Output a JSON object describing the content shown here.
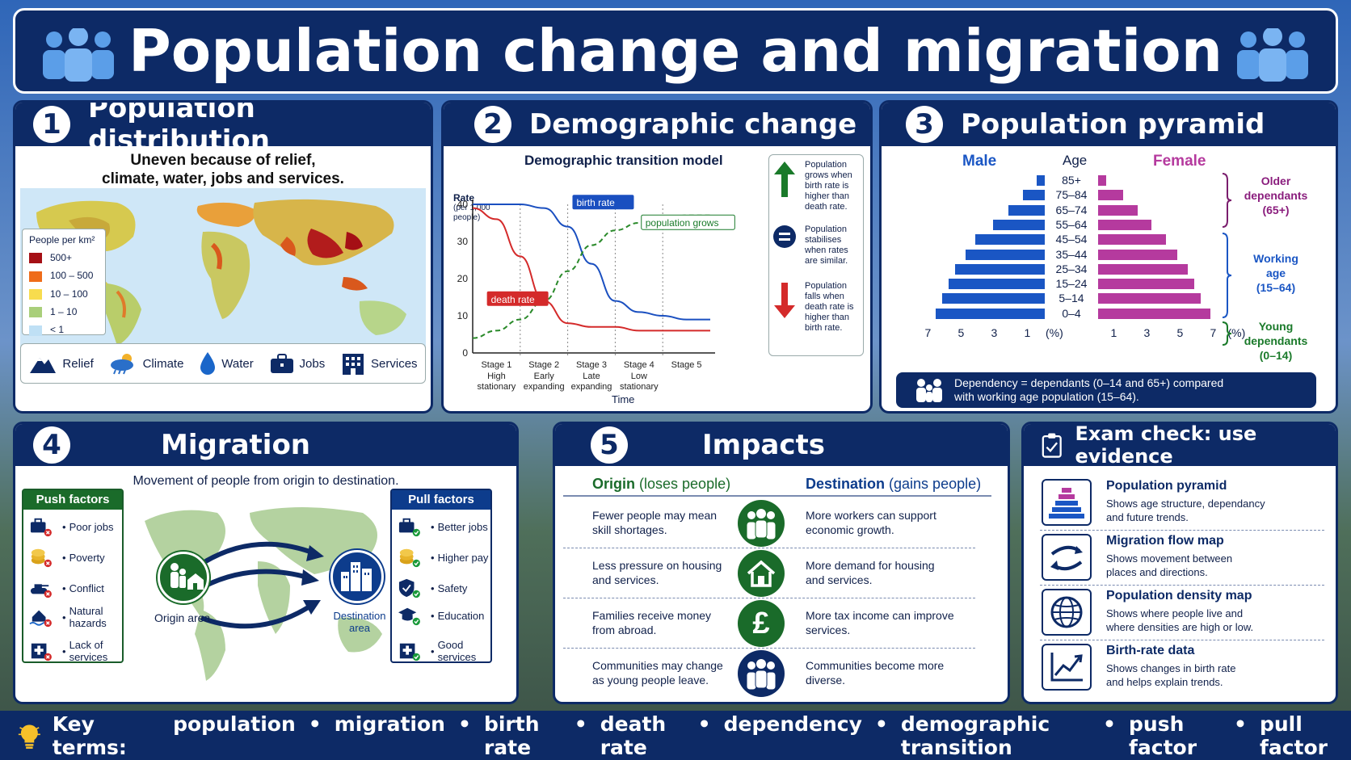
{
  "title": "Population change and migration",
  "distribution": {
    "number": "1",
    "heading": "Population distribution",
    "subtitle_line1": "Uneven because of relief,",
    "subtitle_line2": "climate, water, jobs and services.",
    "legend_title": "People per km²",
    "legend": [
      {
        "label": "500+",
        "color": "#a50f15"
      },
      {
        "label": "100 – 500",
        "color": "#ef6c1a"
      },
      {
        "label": "10 – 100",
        "color": "#f7dc4e"
      },
      {
        "label": "1 – 10",
        "color": "#a9cf7a"
      },
      {
        "label": "< 1",
        "color": "#bfe0f5"
      }
    ],
    "factors": [
      {
        "label": "Relief",
        "icon": "mountain-icon"
      },
      {
        "label": "Climate",
        "icon": "cloud-sun-icon"
      },
      {
        "label": "Water",
        "icon": "water-drop-icon"
      },
      {
        "label": "Jobs",
        "icon": "briefcase-icon"
      },
      {
        "label": "Services",
        "icon": "building-icon"
      }
    ]
  },
  "demographic": {
    "number": "2",
    "heading": "Demographic change",
    "chart_title": "Demographic transition model",
    "notes": [
      {
        "icon": "arrow-up-icon",
        "text_lines": [
          "Population",
          "grows when",
          "birth rate is",
          "higher than",
          "death rate."
        ]
      },
      {
        "icon": "equals-icon",
        "text_lines": [
          "Population",
          "stabilises",
          "when rates",
          "are similar."
        ]
      },
      {
        "icon": "arrow-down-icon",
        "text_lines": [
          "Population",
          "falls when",
          "death rate is",
          "higher than",
          "birth rate."
        ]
      }
    ]
  },
  "chart_data": {
    "type": "line",
    "title": "Demographic transition model",
    "xlabel": "Time",
    "ylabel": "Rate",
    "ylabel_note": "(per 1,000 people)",
    "ylim": [
      0,
      40
    ],
    "yticks": [
      0,
      10,
      20,
      30,
      40
    ],
    "stages": [
      {
        "name": "Stage 1",
        "desc1": "High",
        "desc2": "stationary"
      },
      {
        "name": "Stage 2",
        "desc1": "Early",
        "desc2": "expanding"
      },
      {
        "name": "Stage 3",
        "desc1": "Late",
        "desc2": "expanding"
      },
      {
        "name": "Stage 4",
        "desc1": "Low",
        "desc2": "stationary"
      },
      {
        "name": "Stage 5",
        "desc1": "",
        "desc2": ""
      }
    ],
    "x": [
      0,
      0.5,
      1,
      1.5,
      2,
      2.5,
      3,
      3.5,
      4,
      4.5,
      5
    ],
    "series": [
      {
        "name": "birth rate",
        "color": "#1a4fc0",
        "values": [
          40,
          40,
          40,
          39,
          34,
          24,
          14,
          11,
          10,
          9,
          9
        ]
      },
      {
        "name": "death rate",
        "color": "#d42a2a",
        "values": [
          39,
          36,
          26,
          14,
          8,
          7,
          7,
          6,
          6,
          6,
          6
        ]
      },
      {
        "name": "population grows",
        "color": "#2a8a2a",
        "dashed": true,
        "values": [
          4,
          6,
          9,
          14,
          22,
          29,
          33,
          35,
          36,
          37,
          37
        ]
      }
    ]
  },
  "pyramid": {
    "number": "3",
    "heading": "Population pyramid",
    "male_label": "Male",
    "female_label": "Female",
    "age_label": "Age",
    "groups": [
      {
        "age": "85+",
        "male": 0.5,
        "female": 0.5
      },
      {
        "age": "75–84",
        "male": 1.3,
        "female": 1.5
      },
      {
        "age": "65–74",
        "male": 2.2,
        "female": 2.4
      },
      {
        "age": "55–64",
        "male": 3.1,
        "female": 3.2
      },
      {
        "age": "45–54",
        "male": 4.2,
        "female": 4.1
      },
      {
        "age": "35–44",
        "male": 4.8,
        "female": 4.8
      },
      {
        "age": "25–34",
        "male": 5.4,
        "female": 5.4
      },
      {
        "age": "15–24",
        "male": 5.8,
        "female": 5.8
      },
      {
        "age": "5–14",
        "male": 6.2,
        "female": 6.2
      },
      {
        "age": "0–4",
        "male": 6.6,
        "female": 6.8
      }
    ],
    "male_ticks": [
      "7",
      "5",
      "3",
      "1",
      "(%)"
    ],
    "female_ticks": [
      "1",
      "3",
      "5",
      "7",
      "(%)"
    ],
    "bracket_older": [
      "Older",
      "dependants",
      "(65+)"
    ],
    "bracket_working": [
      "Working",
      "age",
      "(15–64)"
    ],
    "bracket_young": [
      "Young",
      "dependants",
      "(0–14)"
    ],
    "dependency_line1": "Dependency = dependants (0–14 and 65+) compared",
    "dependency_line2": "with working age population (15–64).",
    "male_color": "#1a56c4",
    "female_color": "#b53a9e"
  },
  "migration": {
    "number": "4",
    "heading": "Migration",
    "subtitle": "Movement of people from origin to destination.",
    "push_title": "Push factors",
    "push": [
      {
        "label": "Poor jobs",
        "icon": "briefcase-icon"
      },
      {
        "label": "Poverty",
        "icon": "coins-icon"
      },
      {
        "label": "Conflict",
        "icon": "tank-icon"
      },
      {
        "label_lines": [
          "Natural",
          "hazards"
        ],
        "icon": "flood-house-icon"
      },
      {
        "label_lines": [
          "Lack of",
          "services"
        ],
        "icon": "hospital-icon"
      }
    ],
    "pull_title": "Pull factors",
    "pull": [
      {
        "label": "Better jobs",
        "icon": "briefcase-icon"
      },
      {
        "label": "Higher pay",
        "icon": "coins-icon"
      },
      {
        "label": "Safety",
        "icon": "shield-icon"
      },
      {
        "label": "Education",
        "icon": "graduation-cap-icon"
      },
      {
        "label_lines": [
          "Good",
          "services"
        ],
        "icon": "hospital-icon"
      }
    ],
    "origin_label": "Origin area",
    "destination_line1": "Destination",
    "destination_line2": "area"
  },
  "impacts": {
    "number": "5",
    "heading": "Impacts",
    "origin_head": "Origin",
    "origin_sub": "(loses people)",
    "dest_head": "Destination",
    "dest_sub": "(gains people)",
    "rows": [
      {
        "origin": [
          "Fewer people may mean",
          "skill shortages."
        ],
        "dest": [
          "More workers can support",
          "economic growth."
        ],
        "icon": "people-icon",
        "color": "#1a6b2a"
      },
      {
        "origin": [
          "Less pressure on housing",
          "and services."
        ],
        "dest": [
          "More demand for housing",
          "and services."
        ],
        "icon": "house-icon",
        "color": "#1a6b2a"
      },
      {
        "origin": [
          "Families receive money",
          "from abroad."
        ],
        "dest": [
          "More tax income can improve",
          "services."
        ],
        "icon": "pound-icon",
        "color": "#1a6b2a",
        "symbol": "£"
      },
      {
        "origin": [
          "Communities may change",
          "as young people leave."
        ],
        "dest": [
          "Communities become more",
          "diverse."
        ],
        "icon": "people-icon",
        "color": "#0d2a66"
      }
    ]
  },
  "exam": {
    "heading": "Exam check: use evidence",
    "items": [
      {
        "title": "Population pyramid",
        "desc": [
          "Shows age structure, dependancy",
          "and future trends."
        ],
        "icon": "pyramid-icon"
      },
      {
        "title": "Migration flow map",
        "desc": [
          "Shows movement between",
          "places and directions."
        ],
        "icon": "flow-arrows-icon"
      },
      {
        "title": "Population density map",
        "desc": [
          "Shows where people live and",
          "where densities are high or low."
        ],
        "icon": "globe-icon"
      },
      {
        "title": "Birth-rate data",
        "desc": [
          "Shows changes in birth rate",
          "and helps explain trends."
        ],
        "icon": "line-chart-icon"
      }
    ]
  },
  "key_terms": {
    "label": "Key terms:",
    "terms": [
      "population",
      "migration",
      "birth rate",
      "death rate",
      "dependency",
      "demographic transition",
      "push factor",
      "pull factor"
    ],
    "separator": "•"
  }
}
